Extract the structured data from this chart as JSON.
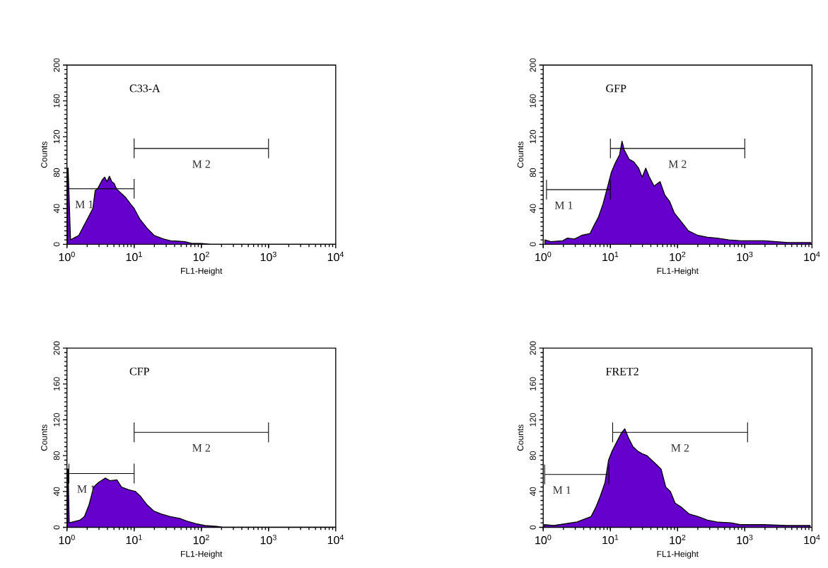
{
  "chart_data": [
    {
      "type": "area",
      "title": "C33-A",
      "xlabel": "FL1-Height",
      "ylabel": "Counts",
      "log": "x",
      "xlim": [
        1,
        10000
      ],
      "xticks": [
        {
          "value": 1,
          "label": "10$^{0}$"
        },
        {
          "value": 10,
          "label": "10$^{1}$"
        },
        {
          "value": 100,
          "label": "10$^{2}$"
        },
        {
          "value": 1000,
          "label": "10$^{3}$"
        },
        {
          "value": 10000,
          "label": "10$^{4}$"
        }
      ],
      "ylim": [
        0,
        200
      ],
      "yticks": [
        0,
        40,
        80,
        120,
        160,
        200
      ],
      "series": [
        {
          "color": "#6600cc",
          "x": [
            1.02,
            1.04,
            1.13,
            1.5,
            1.91,
            2.43,
            2.63,
            2.86,
            3.36,
            3.64,
            3.95,
            4.28,
            4.64,
            5.03,
            5.45,
            6.41,
            7.53,
            8.85,
            10,
            12.2,
            15.6,
            19.8,
            27.4,
            34.9,
            56.9,
            72.3,
            100,
            138,
            310,
            10000
          ],
          "values": [
            85,
            85,
            5,
            10,
            25,
            40,
            60,
            62,
            72,
            75,
            70,
            76,
            70,
            68,
            62,
            57,
            52,
            45,
            40,
            28,
            18,
            10,
            6,
            4,
            3,
            1,
            1,
            0,
            0,
            0
          ]
        },
        {
          "type": "line",
          "color": "#000000",
          "x": [
            1,
            10
          ],
          "values": [
            62,
            62
          ],
          "errors": [
            11,
            11
          ]
        },
        {
          "type": "line",
          "color": "#000000",
          "x": [
            10,
            1000
          ],
          "values": [
            107,
            107
          ],
          "errors": [
            11,
            11
          ]
        }
      ],
      "annotations": [
        "M 1",
        "M 2"
      ]
    },
    {
      "type": "area",
      "title": "GFP",
      "xlabel": "FL1-Height",
      "ylabel": "Counts",
      "log": "x",
      "xlim": [
        1,
        10000
      ],
      "xticks": [
        {
          "value": 1,
          "label": "10$^{0}$"
        },
        {
          "value": 10,
          "label": "10$^{1}$"
        },
        {
          "value": 100,
          "label": "10$^{2}$"
        },
        {
          "value": 1000,
          "label": "10$^{3}$"
        },
        {
          "value": 10000,
          "label": "10$^{4}$"
        }
      ],
      "ylim": [
        0,
        200
      ],
      "yticks": [
        0,
        40,
        80,
        120,
        160,
        200
      ],
      "series": [
        {
          "color": "#6600cc",
          "x": [
            1.06,
            1.3,
            1.95,
            2.29,
            2.93,
            3.73,
            4.97,
            5.61,
            6.6,
            7.77,
            9.14,
            10.3,
            11.7,
            13.7,
            14.9,
            16.1,
            19.0,
            22.3,
            26.3,
            29.7,
            33.6,
            38.0,
            44.7,
            54.8,
            64.5,
            75.9,
            89.3,
            114,
            145,
            201,
            278,
            385,
            577,
            866,
            1300,
            1950,
            2930,
            4390,
            6590,
            9600
          ],
          "values": [
            5,
            3,
            4,
            7,
            6,
            10,
            12,
            20,
            30,
            45,
            65,
            80,
            90,
            100,
            115,
            105,
            95,
            92,
            85,
            75,
            85,
            75,
            65,
            70,
            55,
            48,
            35,
            25,
            15,
            10,
            8,
            7,
            5,
            4,
            4,
            4,
            3,
            2,
            2,
            2
          ]
        },
        {
          "type": "line",
          "color": "#000000",
          "x": [
            1.12,
            10
          ],
          "values": [
            61,
            61
          ],
          "errors": [
            11,
            11
          ]
        },
        {
          "type": "line",
          "color": "#000000",
          "x": [
            10,
            1000
          ],
          "values": [
            107,
            107
          ],
          "errors": [
            11,
            11
          ]
        }
      ],
      "annotations": [
        "M 1",
        "M 2"
      ]
    },
    {
      "type": "area",
      "title": "CFP",
      "xlabel": "FL1-Height",
      "ylabel": "Counts",
      "log": "x",
      "xlim": [
        1,
        10000
      ],
      "xticks": [
        {
          "value": 1,
          "label": "10$^{0}$"
        },
        {
          "value": 10,
          "label": "10$^{1}$"
        },
        {
          "value": 100,
          "label": "10$^{2}$"
        },
        {
          "value": 1000,
          "label": "10$^{3}$"
        },
        {
          "value": 10000,
          "label": "10$^{4}$"
        }
      ],
      "ylim": [
        0,
        200
      ],
      "yticks": [
        0,
        40,
        80,
        120,
        160,
        200
      ],
      "series": [
        {
          "color": "#6600cc",
          "x": [
            1.02,
            1.04,
            1.08,
            1.55,
            1.82,
            2.13,
            2.5,
            2.93,
            3.72,
            4.37,
            5.54,
            6.49,
            8.28,
            10.5,
            12.3,
            15.6,
            19.8,
            25.2,
            34.6,
            47.7,
            60.5,
            83.0,
            114,
            170,
            216,
            10000
          ],
          "values": [
            65,
            65,
            5,
            8,
            12,
            25,
            45,
            50,
            55,
            52,
            53,
            45,
            42,
            40,
            35,
            25,
            18,
            15,
            12,
            10,
            7,
            4,
            2,
            1,
            0,
            0
          ]
        },
        {
          "type": "line",
          "color": "#000000",
          "x": [
            1.07,
            10
          ],
          "values": [
            60,
            60
          ],
          "errors": [
            11,
            11
          ]
        },
        {
          "type": "line",
          "color": "#000000",
          "x": [
            10,
            1000
          ],
          "values": [
            106,
            106
          ],
          "errors": [
            11,
            11
          ]
        }
      ],
      "annotations": [
        "M 1",
        "M 2"
      ]
    },
    {
      "type": "area",
      "title": "FRET2",
      "xlabel": "FL1-Height",
      "ylabel": "Counts",
      "log": "x",
      "xlim": [
        1,
        10000
      ],
      "xticks": [
        {
          "value": 1,
          "label": "10$^{0}$"
        },
        {
          "value": 10,
          "label": "10$^{1}$"
        },
        {
          "value": 100,
          "label": "10$^{2}$"
        },
        {
          "value": 1000,
          "label": "10$^{3}$"
        },
        {
          "value": 10000,
          "label": "10$^{4}$"
        }
      ],
      "ylim": [
        0,
        200
      ],
      "yticks": [
        0,
        40,
        80,
        120,
        160,
        200
      ],
      "series": [
        {
          "color": "#6600cc",
          "x": [
            1.04,
            1.43,
            2.14,
            3.19,
            4.38,
            5.15,
            6.04,
            7.09,
            8.32,
            9.39,
            10.6,
            12.4,
            14.5,
            16.4,
            18.5,
            21.7,
            25.5,
            29.9,
            35.1,
            41.2,
            48.4,
            56.8,
            66.6,
            78.2,
            91.8,
            116,
            148,
            203,
            279,
            385,
            621,
            856,
            1910,
            4230,
            9370
          ],
          "values": [
            3,
            2,
            4,
            6,
            10,
            12,
            22,
            35,
            50,
            75,
            85,
            95,
            105,
            110,
            100,
            90,
            85,
            82,
            80,
            75,
            70,
            65,
            45,
            40,
            27,
            22,
            15,
            12,
            8,
            6,
            5,
            3,
            3,
            2,
            2
          ]
        },
        {
          "type": "line",
          "color": "#000000",
          "x": [
            1.05,
            9.5
          ],
          "values": [
            59,
            59
          ],
          "errors": [
            11,
            11
          ]
        },
        {
          "type": "line",
          "color": "#000000",
          "x": [
            10.8,
            1100
          ],
          "values": [
            106,
            106
          ],
          "errors": [
            11,
            11
          ]
        }
      ],
      "annotations": [
        "M 1",
        "M 2"
      ]
    }
  ]
}
